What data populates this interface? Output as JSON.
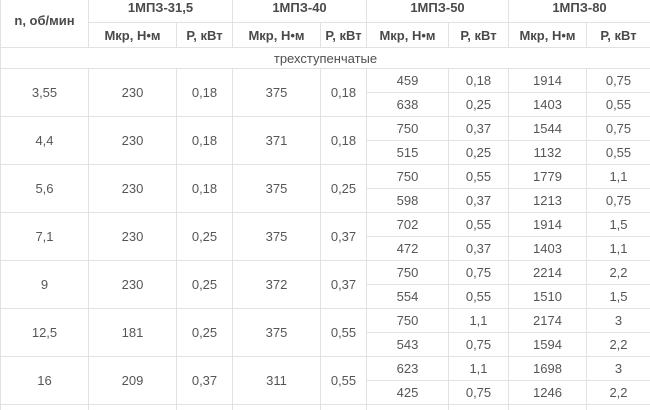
{
  "table": {
    "corner_header": "n, об/мин",
    "groups": [
      {
        "name": "1МПЗ-31,5"
      },
      {
        "name": "1МПЗ-40"
      },
      {
        "name": "1МПЗ-50"
      },
      {
        "name": "1МПЗ-80"
      }
    ],
    "sub_headers": {
      "torque": "Мкр, Н•м",
      "power": "Р, кВт"
    },
    "section_label": "трехступенчатые",
    "rows": [
      {
        "n": "3,55",
        "mp31": {
          "m": "230",
          "p": "0,18"
        },
        "mp40": {
          "m": "375",
          "p": "0,18"
        },
        "mp50": [
          {
            "m": "459",
            "p": "0,18"
          },
          {
            "m": "638",
            "p": "0,25"
          }
        ],
        "mp80": [
          {
            "m": "1914",
            "p": "0,75"
          },
          {
            "m": "1403",
            "p": "0,55"
          }
        ]
      },
      {
        "n": "4,4",
        "mp31": {
          "m": "230",
          "p": "0,18"
        },
        "mp40": {
          "m": "371",
          "p": "0,18"
        },
        "mp50": [
          {
            "m": "750",
            "p": "0,37"
          },
          {
            "m": "515",
            "p": "0,25"
          }
        ],
        "mp80": [
          {
            "m": "1544",
            "p": "0,75"
          },
          {
            "m": "1132",
            "p": "0,55"
          }
        ]
      },
      {
        "n": "5,6",
        "mp31": {
          "m": "230",
          "p": "0,18"
        },
        "mp40": {
          "m": "375",
          "p": "0,25"
        },
        "mp50": [
          {
            "m": "750",
            "p": "0,55"
          },
          {
            "m": "598",
            "p": "0,37"
          }
        ],
        "mp80": [
          {
            "m": "1779",
            "p": "1,1"
          },
          {
            "m": "1213",
            "p": "0,75"
          }
        ]
      },
      {
        "n": "7,1",
        "mp31": {
          "m": "230",
          "p": "0,25"
        },
        "mp40": {
          "m": "375",
          "p": "0,37"
        },
        "mp50": [
          {
            "m": "702",
            "p": "0,55"
          },
          {
            "m": "472",
            "p": "0,37"
          }
        ],
        "mp80": [
          {
            "m": "1914",
            "p": "1,5"
          },
          {
            "m": "1403",
            "p": "1,1"
          }
        ]
      },
      {
        "n": "9",
        "mp31": {
          "m": "230",
          "p": "0,25"
        },
        "mp40": {
          "m": "372",
          "p": "0,37"
        },
        "mp50": [
          {
            "m": "750",
            "p": "0,75"
          },
          {
            "m": "554",
            "p": "0,55"
          }
        ],
        "mp80": [
          {
            "m": "2214",
            "p": "2,2"
          },
          {
            "m": "1510",
            "p": "1,5"
          }
        ]
      },
      {
        "n": "12,5",
        "mp31": {
          "m": "181",
          "p": "0,25"
        },
        "mp40": {
          "m": "375",
          "p": "0,55"
        },
        "mp50": [
          {
            "m": "750",
            "p": "1,1"
          },
          {
            "m": "543",
            "p": "0,75"
          }
        ],
        "mp80": [
          {
            "m": "2174",
            "p": "3"
          },
          {
            "m": "1594",
            "p": "2,2"
          }
        ]
      },
      {
        "n": "16",
        "mp31": {
          "m": "209",
          "p": "0,37"
        },
        "mp40": {
          "m": "311",
          "p": "0,55"
        },
        "mp50": [
          {
            "m": "623",
            "p": "1,1"
          },
          {
            "m": "425",
            "p": "0,75"
          }
        ],
        "mp80": [
          {
            "m": "1698",
            "p": "3"
          },
          {
            "m": "1246",
            "p": "2,2"
          }
        ]
      }
    ]
  }
}
